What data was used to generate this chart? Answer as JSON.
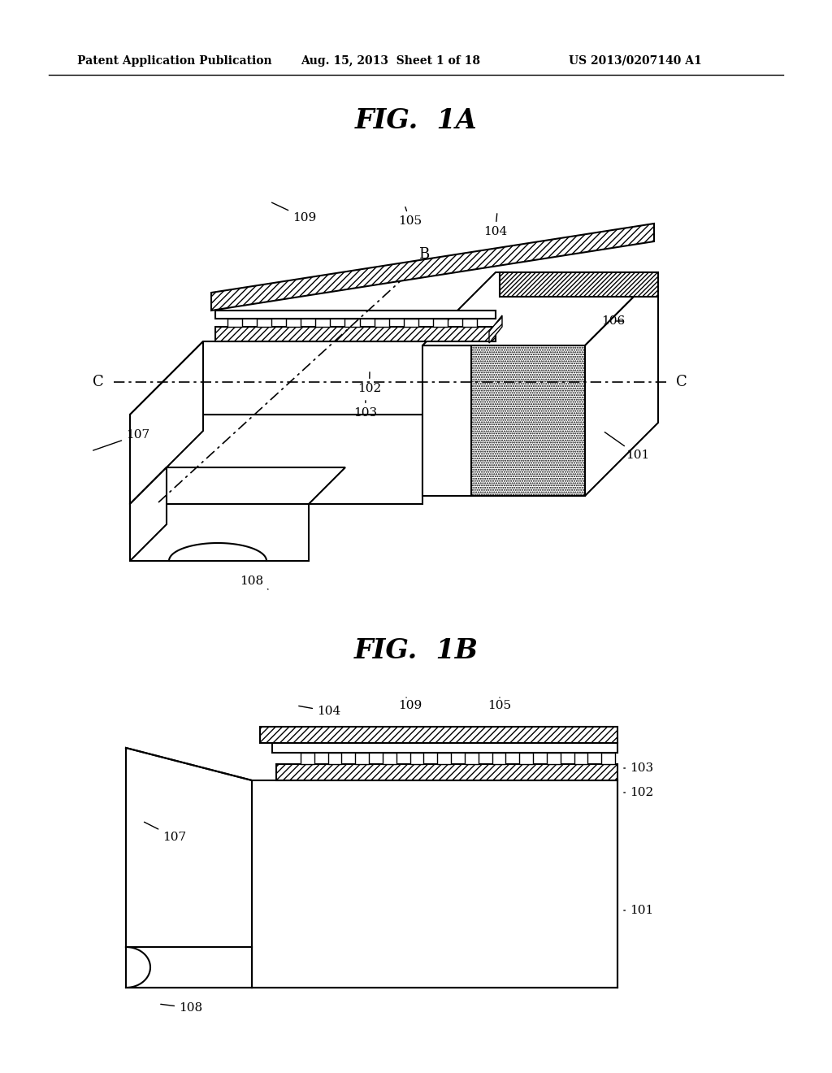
{
  "bg_color": "#ffffff",
  "header_text": "Patent Application Publication",
  "header_date": "Aug. 15, 2013  Sheet 1 of 18",
  "header_patent": "US 2013/0207140 A1",
  "lc": "#000000",
  "lw": 1.5,
  "fig1a_title": "FIG.  1A",
  "fig1b_title": "FIG.  1B"
}
